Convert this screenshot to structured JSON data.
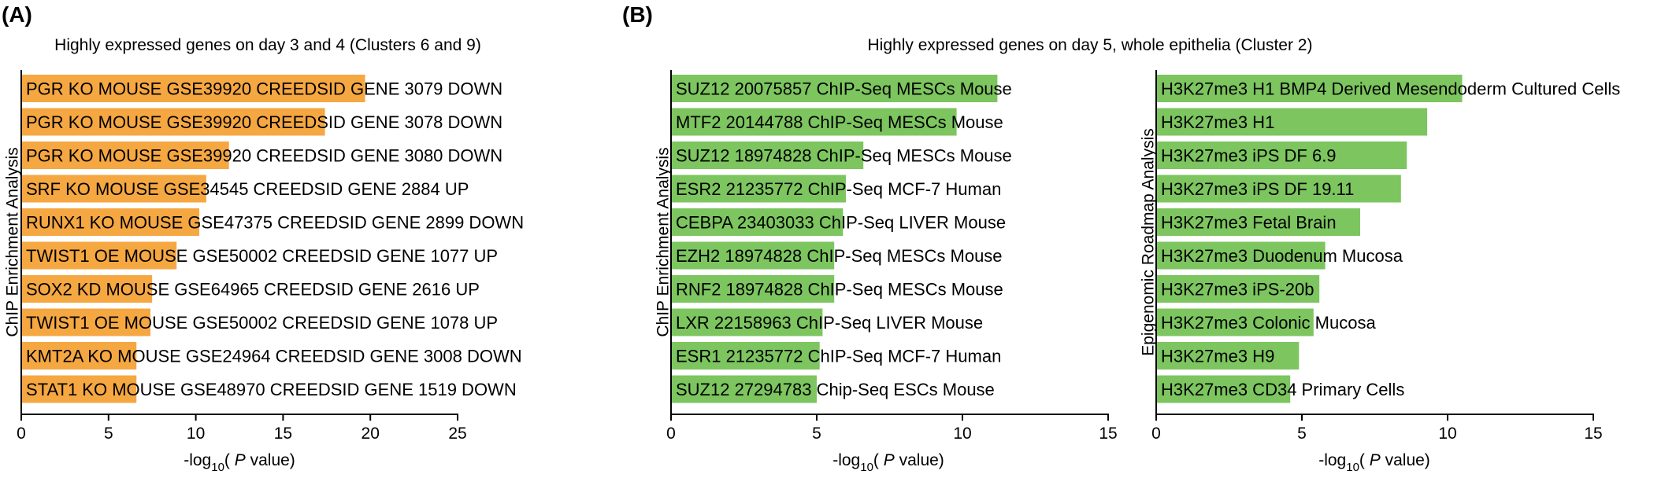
{
  "panels": [
    {
      "letter": "(A)"
    },
    {
      "letter": "(B)"
    }
  ],
  "chart_data": [
    {
      "type": "bar",
      "orientation": "horizontal",
      "panel": "(A)",
      "title": "Highly expressed genes on day 3 and 4 (Clusters 6 and 9)",
      "ylabel": "ChIP Enrichment Analysis",
      "xlabel_parts": [
        "-log",
        "10",
        "( ",
        "P",
        "  value)"
      ],
      "xlim": [
        0,
        25
      ],
      "xticks": [
        0,
        5,
        10,
        15,
        20,
        25
      ],
      "bar_color": "#F5A742",
      "categories": [
        "PGR KO MOUSE GSE39920 CREEDSID GENE 3079 DOWN",
        "PGR KO MOUSE GSE39920 CREEDSID GENE 3078 DOWN",
        "PGR KO MOUSE GSE39920 CREEDSID GENE 3080 DOWN",
        "SRF KO MOUSE GSE34545 CREEDSID GENE 2884 UP",
        "RUNX1 KO MOUSE GSE47375 CREEDSID GENE 2899 DOWN",
        "TWIST1 OE MOUSE GSE50002 CREEDSID GENE 1077 UP",
        "SOX2 KD MOUSE GSE64965 CREEDSID GENE 2616 UP",
        "TWIST1 OE MOUSE GSE50002 CREEDSID GENE 1078 UP",
        "KMT2A KO MOUSE GSE24964 CREEDSID GENE 3008 DOWN",
        "STAT1 KO MOUSE GSE48970 CREEDSID GENE 1519 DOWN"
      ],
      "values": [
        19.7,
        17.4,
        11.9,
        10.6,
        10.2,
        8.9,
        7.5,
        7.4,
        6.6,
        6.6
      ]
    },
    {
      "type": "bar",
      "orientation": "horizontal",
      "panel": "(B)",
      "title": "Highly expressed genes on day 5, whole epithelia (Cluster 2)",
      "ylabel": "ChIP Enrichment Analysis",
      "xlabel_parts": [
        "-log",
        "10",
        "( ",
        "P",
        "  value)"
      ],
      "xlim": [
        0,
        15
      ],
      "xticks": [
        0,
        5,
        10,
        15
      ],
      "bar_color": "#7CC55F",
      "categories": [
        "SUZ12 20075857 ChIP-Seq MESCs Mouse",
        "MTF2 20144788 ChIP-Seq MESCs Mouse",
        "SUZ12 18974828 ChIP-Seq MESCs Mouse",
        "ESR2 21235772 ChIP-Seq MCF-7 Human",
        "CEBPA 23403033 ChIP-Seq LIVER Mouse",
        "EZH2 18974828 ChIP-Seq MESCs Mouse",
        "RNF2 18974828 ChIP-Seq MESCs Mouse",
        "LXR 22158963 ChIP-Seq LIVER Mouse",
        "ESR1 21235772 ChIP-Seq MCF-7 Human",
        "SUZ12 27294783 Chip-Seq ESCs Mouse"
      ],
      "values": [
        11.2,
        9.8,
        6.6,
        6.0,
        5.9,
        5.6,
        5.6,
        5.2,
        5.1,
        5.0
      ]
    },
    {
      "type": "bar",
      "orientation": "horizontal",
      "panel": "(B)",
      "title": "",
      "ylabel": "Epigenomic Roadmap Analysis",
      "xlabel_parts": [
        "-log",
        "10",
        "( ",
        "P",
        "  value)"
      ],
      "xlim": [
        0,
        15
      ],
      "xticks": [
        0,
        5,
        10,
        15
      ],
      "bar_color": "#7CC55F",
      "categories": [
        "H3K27me3 H1 BMP4 Derived Mesendoderm Cultured Cells",
        "H3K27me3 H1",
        "H3K27me3 iPS DF 6.9",
        "H3K27me3 iPS DF 19.11",
        "H3K27me3 Fetal Brain",
        "H3K27me3 Duodenum Mucosa",
        "H3K27me3 iPS-20b",
        "H3K27me3 Colonic Mucosa",
        "H3K27me3 H9",
        "H3K27me3 CD34 Primary Cells"
      ],
      "values": [
        10.5,
        9.3,
        8.6,
        8.4,
        7.0,
        5.8,
        5.6,
        5.4,
        4.9,
        4.6
      ]
    }
  ]
}
